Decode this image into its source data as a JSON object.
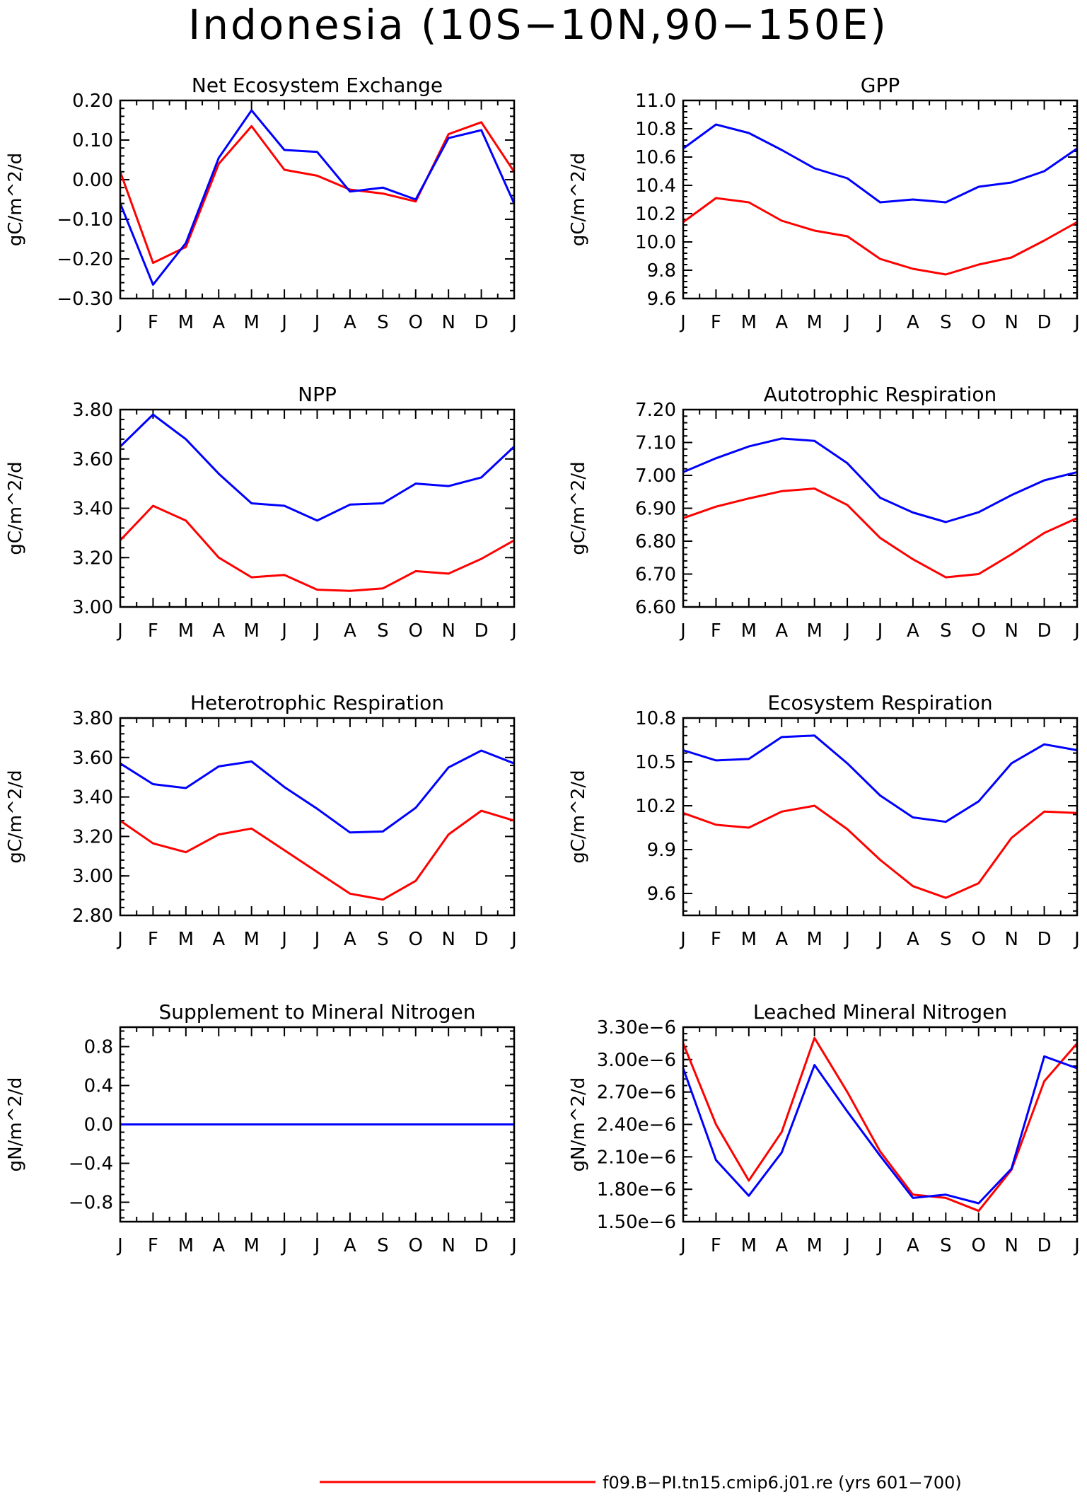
{
  "figure": {
    "title": "Indonesia (10S−10N,90−150E)",
    "legend": {
      "entries": [
        {
          "label": "f09.B−PI.tn15.cmip6.j01.re (yrs 601−700)",
          "color": "#ff0000"
        }
      ]
    }
  },
  "chart_data": [
    {
      "type": "line",
      "title": "Net Ecosystem Exchange",
      "ylabel": "gC/m^2/d",
      "x": [
        "J",
        "F",
        "M",
        "A",
        "M",
        "J",
        "J",
        "A",
        "S",
        "O",
        "N",
        "D",
        "J"
      ],
      "ylim": [
        -0.3,
        0.2
      ],
      "yticks": [
        -0.3,
        -0.2,
        -0.1,
        0.0,
        0.1,
        0.2
      ],
      "ytick_labels": [
        "−0.30",
        "−0.20",
        "−0.10",
        "0.00",
        "0.10",
        "0.20"
      ],
      "grid": false,
      "series": [
        {
          "color": "#ff0000",
          "values": [
            0.02,
            -0.21,
            -0.17,
            0.04,
            0.135,
            0.025,
            0.01,
            -0.025,
            -0.035,
            -0.055,
            0.115,
            0.145,
            0.02
          ]
        },
        {
          "color": "#0000ff",
          "values": [
            -0.06,
            -0.265,
            -0.16,
            0.055,
            0.175,
            0.075,
            0.07,
            -0.03,
            -0.02,
            -0.05,
            0.105,
            0.125,
            -0.06
          ]
        }
      ]
    },
    {
      "type": "line",
      "title": "GPP",
      "ylabel": "gC/m^2/d",
      "x": [
        "J",
        "F",
        "M",
        "A",
        "M",
        "J",
        "J",
        "A",
        "S",
        "O",
        "N",
        "D",
        "J"
      ],
      "ylim": [
        9.6,
        11.0
      ],
      "yticks": [
        9.6,
        9.8,
        10.0,
        10.2,
        10.4,
        10.6,
        10.8,
        11.0
      ],
      "ytick_labels": [
        "9.6",
        "9.8",
        "10.0",
        "10.2",
        "10.4",
        "10.6",
        "10.8",
        "11.0"
      ],
      "grid": false,
      "series": [
        {
          "color": "#ff0000",
          "values": [
            10.14,
            10.31,
            10.28,
            10.15,
            10.08,
            10.04,
            9.88,
            9.81,
            9.77,
            9.84,
            9.89,
            10.01,
            10.14
          ]
        },
        {
          "color": "#0000ff",
          "values": [
            10.66,
            10.83,
            10.77,
            10.65,
            10.52,
            10.45,
            10.28,
            10.3,
            10.28,
            10.39,
            10.42,
            10.5,
            10.66
          ]
        }
      ]
    },
    {
      "type": "line",
      "title": "NPP",
      "ylabel": "gC/m^2/d",
      "x": [
        "J",
        "F",
        "M",
        "A",
        "M",
        "J",
        "J",
        "A",
        "S",
        "O",
        "N",
        "D",
        "J"
      ],
      "ylim": [
        3.0,
        3.8
      ],
      "yticks": [
        3.0,
        3.2,
        3.4,
        3.6,
        3.8
      ],
      "ytick_labels": [
        "3.00",
        "3.20",
        "3.40",
        "3.60",
        "3.80"
      ],
      "grid": false,
      "series": [
        {
          "color": "#ff0000",
          "values": [
            3.27,
            3.41,
            3.35,
            3.2,
            3.12,
            3.13,
            3.07,
            3.065,
            3.075,
            3.145,
            3.135,
            3.195,
            3.27
          ]
        },
        {
          "color": "#0000ff",
          "values": [
            3.65,
            3.78,
            3.68,
            3.54,
            3.42,
            3.41,
            3.35,
            3.415,
            3.42,
            3.5,
            3.49,
            3.525,
            3.65
          ]
        }
      ]
    },
    {
      "type": "line",
      "title": "Autotrophic Respiration",
      "ylabel": "gC/m^2/d",
      "x": [
        "J",
        "F",
        "M",
        "A",
        "M",
        "J",
        "J",
        "A",
        "S",
        "O",
        "N",
        "D",
        "J"
      ],
      "ylim": [
        6.6,
        7.2
      ],
      "yticks": [
        6.6,
        6.7,
        6.8,
        6.9,
        7.0,
        7.1,
        7.2
      ],
      "ytick_labels": [
        "6.60",
        "6.70",
        "6.80",
        "6.90",
        "7.00",
        "7.10",
        "7.20"
      ],
      "grid": false,
      "series": [
        {
          "color": "#ff0000",
          "values": [
            6.87,
            6.905,
            6.93,
            6.952,
            6.96,
            6.91,
            6.81,
            6.745,
            6.69,
            6.7,
            6.76,
            6.825,
            6.87
          ]
        },
        {
          "color": "#0000ff",
          "values": [
            7.01,
            7.052,
            7.088,
            7.112,
            7.105,
            7.037,
            6.932,
            6.887,
            6.858,
            6.888,
            6.94,
            6.985,
            7.01
          ]
        }
      ]
    },
    {
      "type": "line",
      "title": "Heterotrophic Respiration",
      "ylabel": "gC/m^2/d",
      "x": [
        "J",
        "F",
        "M",
        "A",
        "M",
        "J",
        "J",
        "A",
        "S",
        "O",
        "N",
        "D",
        "J"
      ],
      "ylim": [
        2.8,
        3.8
      ],
      "yticks": [
        2.8,
        3.0,
        3.2,
        3.4,
        3.6,
        3.8
      ],
      "ytick_labels": [
        "2.80",
        "3.00",
        "3.20",
        "3.40",
        "3.60",
        "3.80"
      ],
      "grid": false,
      "series": [
        {
          "color": "#ff0000",
          "values": [
            3.28,
            3.165,
            3.12,
            3.21,
            3.24,
            3.13,
            3.02,
            2.91,
            2.88,
            2.975,
            3.21,
            3.33,
            3.28
          ]
        },
        {
          "color": "#0000ff",
          "values": [
            3.57,
            3.465,
            3.445,
            3.555,
            3.58,
            3.45,
            3.34,
            3.22,
            3.225,
            3.345,
            3.55,
            3.635,
            3.57
          ]
        }
      ]
    },
    {
      "type": "line",
      "title": "Ecosystem Respiration",
      "ylabel": "gC/m^2/d",
      "x": [
        "J",
        "F",
        "M",
        "A",
        "M",
        "J",
        "J",
        "A",
        "S",
        "O",
        "N",
        "D",
        "J"
      ],
      "ylim": [
        9.45,
        10.8
      ],
      "yticks": [
        9.6,
        9.9,
        10.2,
        10.5,
        10.8
      ],
      "ytick_labels": [
        "9.6",
        "9.9",
        "10.2",
        "10.5",
        "10.8"
      ],
      "grid": false,
      "series": [
        {
          "color": "#ff0000",
          "values": [
            10.15,
            10.07,
            10.05,
            10.16,
            10.2,
            10.04,
            9.83,
            9.65,
            9.57,
            9.67,
            9.98,
            10.16,
            10.15
          ]
        },
        {
          "color": "#0000ff",
          "values": [
            10.58,
            10.51,
            10.52,
            10.67,
            10.68,
            10.49,
            10.27,
            10.12,
            10.09,
            10.23,
            10.49,
            10.62,
            10.58
          ]
        }
      ]
    },
    {
      "type": "line",
      "title": "Supplement to Mineral Nitrogen",
      "ylabel": "gN/m^2/d",
      "x": [
        "J",
        "F",
        "M",
        "A",
        "M",
        "J",
        "J",
        "A",
        "S",
        "O",
        "N",
        "D",
        "J"
      ],
      "ylim": [
        -1.0,
        1.0
      ],
      "yticks": [
        -0.8,
        -0.4,
        0.0,
        0.4,
        0.8
      ],
      "ytick_labels": [
        "−0.8",
        "−0.4",
        "0.0",
        "0.4",
        "0.8"
      ],
      "grid": false,
      "series": [
        {
          "color": "#ff0000",
          "values": [
            0,
            0,
            0,
            0,
            0,
            0,
            0,
            0,
            0,
            0,
            0,
            0,
            0
          ]
        },
        {
          "color": "#0000ff",
          "values": [
            0,
            0,
            0,
            0,
            0,
            0,
            0,
            0,
            0,
            0,
            0,
            0,
            0
          ]
        }
      ]
    },
    {
      "type": "line",
      "title": "Leached Mineral Nitrogen",
      "ylabel": "gN/m^2/d",
      "x": [
        "J",
        "F",
        "M",
        "A",
        "M",
        "J",
        "J",
        "A",
        "S",
        "O",
        "N",
        "D",
        "J"
      ],
      "ylim": [
        1.5e-06,
        3.3e-06
      ],
      "yticks": [
        1.5e-06,
        1.8e-06,
        2.1e-06,
        2.4e-06,
        2.7e-06,
        3e-06,
        3.3e-06
      ],
      "ytick_labels": [
        "1.50e−6",
        "1.80e−6",
        "2.10e−6",
        "2.40e−6",
        "2.70e−6",
        "3.00e−6",
        "3.30e−6"
      ],
      "grid": false,
      "series": [
        {
          "color": "#ff0000",
          "values": [
            3.15e-06,
            2.4e-06,
            1.88e-06,
            2.33e-06,
            3.2e-06,
            2.7e-06,
            2.15e-06,
            1.75e-06,
            1.72e-06,
            1.6e-06,
            1.98e-06,
            2.8e-06,
            3.15e-06
          ]
        },
        {
          "color": "#0000ff",
          "values": [
            2.92e-06,
            2.07e-06,
            1.74e-06,
            2.14e-06,
            2.95e-06,
            2.52e-06,
            2.11e-06,
            1.72e-06,
            1.75e-06,
            1.67e-06,
            1.99e-06,
            3.03e-06,
            2.92e-06
          ]
        }
      ]
    }
  ]
}
